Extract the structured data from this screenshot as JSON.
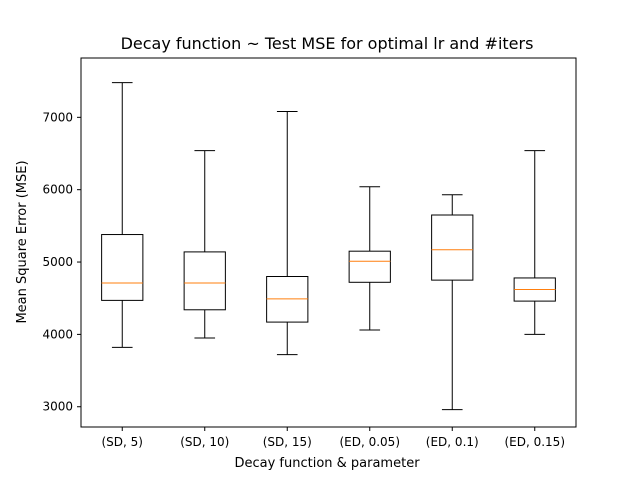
{
  "chart_data": {
    "type": "box",
    "title": "Decay function ~ Test MSE for optimal lr and #iters",
    "xlabel": "Decay function & parameter",
    "ylabel": "Mean Square Error (MSE)",
    "ylim": [
      2720,
      7820
    ],
    "yticks": [
      3000,
      4000,
      5000,
      6000,
      7000
    ],
    "grid": false,
    "categories": [
      "(SD, 5)",
      "(SD, 10)",
      "(SD, 15)",
      "(ED, 0.05)",
      "(ED, 0.1)",
      "(ED, 0.15)"
    ],
    "boxes": [
      {
        "category": "(SD, 5)",
        "whisker_low": 3820,
        "q1": 4470,
        "median": 4710,
        "q3": 5380,
        "whisker_high": 7480
      },
      {
        "category": "(SD, 10)",
        "whisker_low": 3950,
        "q1": 4340,
        "median": 4710,
        "q3": 5140,
        "whisker_high": 6540
      },
      {
        "category": "(SD, 15)",
        "whisker_low": 3720,
        "q1": 4170,
        "median": 4490,
        "q3": 4800,
        "whisker_high": 7080
      },
      {
        "category": "(ED, 0.05)",
        "whisker_low": 4060,
        "q1": 4720,
        "median": 5010,
        "q3": 5150,
        "whisker_high": 6040
      },
      {
        "category": "(ED, 0.1)",
        "whisker_low": 2960,
        "q1": 4750,
        "median": 5170,
        "q3": 5650,
        "whisker_high": 5930
      },
      {
        "category": "(ED, 0.15)",
        "whisker_low": 4000,
        "q1": 4460,
        "median": 4620,
        "q3": 4780,
        "whisker_high": 6540
      }
    ],
    "colors": {
      "box": "#000000",
      "median": "#ff7f0e",
      "background": "#ffffff"
    }
  }
}
